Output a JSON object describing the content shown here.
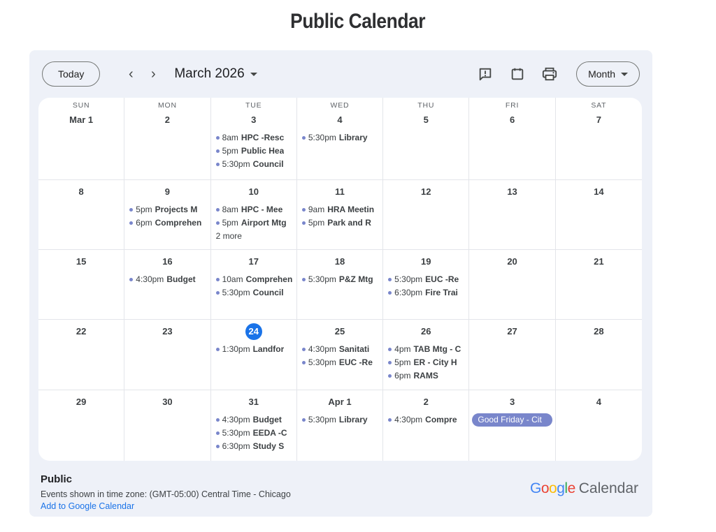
{
  "page": {
    "title": "Public Calendar"
  },
  "toolbar": {
    "today_label": "Today",
    "prev_icon": "‹",
    "next_icon": "›",
    "month_title": "March 2026",
    "icons": [
      "feedback-icon",
      "calendar-icon",
      "print-icon"
    ],
    "view_selector": "Month"
  },
  "colors": {
    "widget_bg": "#eef1f8",
    "accent_blue": "#1a73e8",
    "event_dot": "#7986cb",
    "badge_bg": "#7986cb",
    "text_dark": "#3c4043",
    "logo_gray": "#5f6368"
  },
  "calendar": {
    "day_headers": [
      "SUN",
      "MON",
      "TUE",
      "WED",
      "THU",
      "FRI",
      "SAT"
    ],
    "weeks": [
      {
        "days": [
          {
            "date": "Mar 1"
          },
          {
            "date": "2"
          },
          {
            "date": "3",
            "events": [
              {
                "time": "8am",
                "title": "HPC -Resc"
              },
              {
                "time": "5pm",
                "title": "Public Hea"
              },
              {
                "time": "5:30pm",
                "title": "Council"
              }
            ]
          },
          {
            "date": "4",
            "events": [
              {
                "time": "5:30pm",
                "title": "Library"
              }
            ]
          },
          {
            "date": "5"
          },
          {
            "date": "6"
          },
          {
            "date": "7"
          }
        ]
      },
      {
        "days": [
          {
            "date": "8"
          },
          {
            "date": "9",
            "events": [
              {
                "time": "5pm",
                "title": "Projects M"
              },
              {
                "time": "6pm",
                "title": "Comprehen"
              }
            ]
          },
          {
            "date": "10",
            "events": [
              {
                "time": "8am",
                "title": "HPC - Mee"
              },
              {
                "time": "5pm",
                "title": "Airport Mtg"
              }
            ],
            "more": "2 more"
          },
          {
            "date": "11",
            "events": [
              {
                "time": "9am",
                "title": "HRA Meetin"
              },
              {
                "time": "5pm",
                "title": "Park and R"
              }
            ]
          },
          {
            "date": "12"
          },
          {
            "date": "13"
          },
          {
            "date": "14"
          }
        ]
      },
      {
        "days": [
          {
            "date": "15"
          },
          {
            "date": "16",
            "events": [
              {
                "time": "4:30pm",
                "title": "Budget"
              }
            ]
          },
          {
            "date": "17",
            "events": [
              {
                "time": "10am",
                "title": "Comprehen"
              },
              {
                "time": "5:30pm",
                "title": "Council"
              }
            ]
          },
          {
            "date": "18",
            "events": [
              {
                "time": "5:30pm",
                "title": "P&Z Mtg"
              }
            ]
          },
          {
            "date": "19",
            "events": [
              {
                "time": "5:30pm",
                "title": "EUC -Re"
              },
              {
                "time": "6:30pm",
                "title": "Fire Trai"
              }
            ]
          },
          {
            "date": "20"
          },
          {
            "date": "21"
          }
        ]
      },
      {
        "days": [
          {
            "date": "22"
          },
          {
            "date": "23"
          },
          {
            "date": "24",
            "today": true,
            "events": [
              {
                "time": "1:30pm",
                "title": "Landfor"
              }
            ]
          },
          {
            "date": "25",
            "events": [
              {
                "time": "4:30pm",
                "title": "Sanitati"
              },
              {
                "time": "5:30pm",
                "title": "EUC -Re"
              }
            ]
          },
          {
            "date": "26",
            "events": [
              {
                "time": "4pm",
                "title": "TAB Mtg - C"
              },
              {
                "time": "5pm",
                "title": "ER - City H"
              },
              {
                "time": "6pm",
                "title": "RAMS"
              }
            ]
          },
          {
            "date": "27"
          },
          {
            "date": "28"
          }
        ]
      },
      {
        "days": [
          {
            "date": "29"
          },
          {
            "date": "30"
          },
          {
            "date": "31",
            "events": [
              {
                "time": "4:30pm",
                "title": "Budget"
              },
              {
                "time": "5:30pm",
                "title": "EEDA -C"
              },
              {
                "time": "6:30pm",
                "title": "Study S"
              }
            ]
          },
          {
            "date": "Apr 1",
            "events": [
              {
                "time": "5:30pm",
                "title": "Library"
              }
            ]
          },
          {
            "date": "2",
            "events": [
              {
                "time": "4:30pm",
                "title": "Compre"
              }
            ]
          },
          {
            "date": "3",
            "badge": "Good Friday - Cit"
          },
          {
            "date": "4"
          }
        ]
      }
    ]
  },
  "footer": {
    "calendar_name": "Public",
    "timezone_note": "Events shown in time zone: (GMT-05:00) Central Time - Chicago",
    "add_link": "Add to Google Calendar",
    "logo_letters": [
      {
        "ch": "G",
        "color": "#4285F4"
      },
      {
        "ch": "o",
        "color": "#EA4335"
      },
      {
        "ch": "o",
        "color": "#FBBC05"
      },
      {
        "ch": "g",
        "color": "#4285F4"
      },
      {
        "ch": "l",
        "color": "#34A853"
      },
      {
        "ch": "e",
        "color": "#EA4335"
      }
    ],
    "logo_suffix": "Calendar"
  }
}
